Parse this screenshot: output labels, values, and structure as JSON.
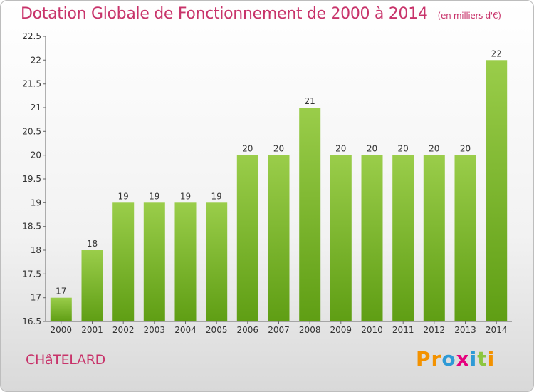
{
  "header": {
    "title": "Dotation Globale de Fonctionnement de 2000 à 2014",
    "unit": "(en milliers d'€)"
  },
  "footer": {
    "city": "CHâTELARD",
    "brand": "Proxiti",
    "brand_letter_colors": [
      "#f39200",
      "#f39200",
      "#2e9ad6",
      "#e6007e",
      "#2e9ad6",
      "#8cc63f",
      "#f39200"
    ]
  },
  "chart_data": {
    "type": "bar",
    "title": "Dotation Globale de Fonctionnement de 2000 à 2014",
    "subtitle": "(en milliers d'€)",
    "xlabel": "",
    "ylabel": "",
    "categories": [
      "2000",
      "2001",
      "2002",
      "2003",
      "2004",
      "2005",
      "2006",
      "2007",
      "2008",
      "2009",
      "2010",
      "2011",
      "2012",
      "2013",
      "2014"
    ],
    "values": [
      17,
      18,
      19,
      19,
      19,
      19,
      20,
      20,
      21,
      20,
      20,
      20,
      20,
      20,
      22
    ],
    "labels": [
      "17",
      "18",
      "19",
      "19",
      "19",
      "19",
      "20",
      "20",
      "21",
      "20",
      "20",
      "20",
      "20",
      "20",
      "22"
    ],
    "ylim": [
      16.5,
      22.5
    ],
    "yticks": [
      16.5,
      17,
      17.5,
      18,
      18.5,
      19,
      19.5,
      20,
      20.5,
      21,
      21.5,
      22,
      22.5
    ],
    "ytick_labels": [
      "16.5",
      "17",
      "17.5",
      "18",
      "18.5",
      "19",
      "19.5",
      "20",
      "20.5",
      "21",
      "21.5",
      "22",
      "22.5"
    ],
    "grid": false,
    "legend": "none",
    "colors": {
      "bar_top": "#9acd4a",
      "bar_bottom": "#5f9e14",
      "axis": "#666666"
    }
  }
}
